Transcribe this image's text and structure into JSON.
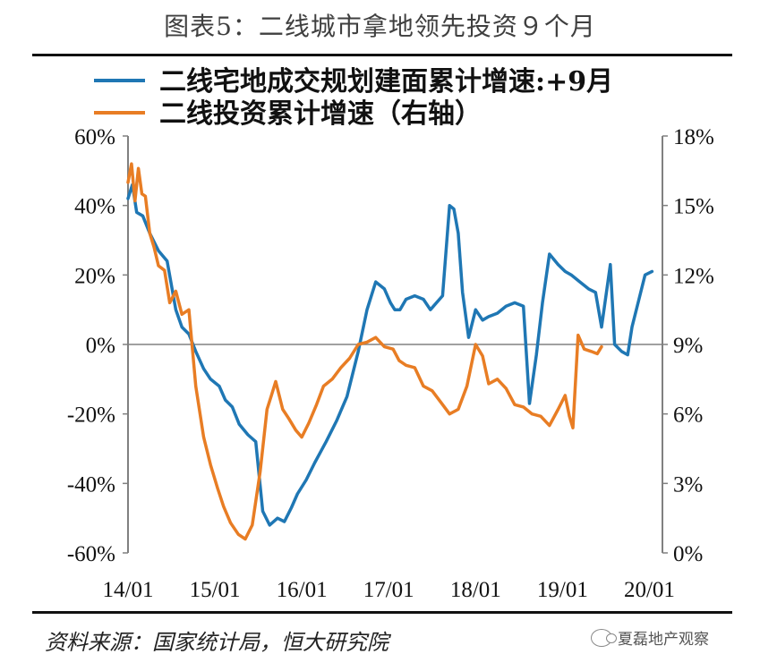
{
  "title": "图表5：二线城市拿地领先投资９个月",
  "source": "资料来源：国家统计局，恒大研究院",
  "watermark": "夏磊地产观察",
  "colors": {
    "blue": "#1f77b4",
    "orange": "#e87d24",
    "axis": "#808080",
    "zero_line": "#808080"
  },
  "chart_data": {
    "type": "line",
    "title": "图表5：二线城市拿地领先投资９个月",
    "x_tick_labels": [
      "14/01",
      "15/01",
      "16/01",
      "17/01",
      "18/01",
      "19/01",
      "20/01"
    ],
    "y_left": {
      "ylim": [
        -60,
        60
      ],
      "ticks": [
        "60%",
        "40%",
        "20%",
        "0%",
        "-20%",
        "-40%",
        "-60%"
      ]
    },
    "y_right": {
      "ylim": [
        0,
        18
      ],
      "ticks": [
        "18%",
        "15%",
        "12%",
        "9%",
        "6%",
        "3%",
        "0%"
      ]
    },
    "legend_position": "top",
    "series": [
      {
        "name": "二线宅地成交规划建面累计增速:+9月",
        "axis": "left",
        "color": "#1f77b4",
        "x": [
          2014.0,
          2014.05,
          2014.1,
          2014.17,
          2014.25,
          2014.35,
          2014.45,
          2014.55,
          2014.62,
          2014.7,
          2014.78,
          2014.87,
          2014.95,
          2015.05,
          2015.12,
          2015.2,
          2015.28,
          2015.38,
          2015.47,
          2015.55,
          2015.63,
          2015.72,
          2015.8,
          2015.88,
          2015.95,
          2016.05,
          2016.15,
          2016.28,
          2016.4,
          2016.52,
          2016.65,
          2016.75,
          2016.85,
          2016.95,
          2017.02,
          2017.07,
          2017.13,
          2017.2,
          2017.3,
          2017.4,
          2017.48,
          2017.55,
          2017.62,
          2017.7,
          2017.75,
          2017.8,
          2017.85,
          2017.92,
          2018.0,
          2018.08,
          2018.15,
          2018.25,
          2018.35,
          2018.45,
          2018.55,
          2018.62,
          2018.7,
          2018.77,
          2018.85,
          2018.95,
          2019.03,
          2019.1,
          2019.2,
          2019.3,
          2019.38,
          2019.45,
          2019.55,
          2019.6,
          2019.68,
          2019.75,
          2019.8,
          2019.88,
          2019.95,
          2020.03
        ],
        "values": [
          42,
          46,
          38,
          37,
          32,
          27,
          24,
          10,
          5,
          3,
          -2,
          -7,
          -10,
          -12,
          -16,
          -18,
          -23,
          -26,
          -28,
          -48,
          -52,
          -50,
          -51,
          -47,
          -43,
          -39,
          -34,
          -28,
          -22,
          -15,
          -2,
          10,
          18,
          16,
          12,
          10,
          10,
          13,
          14,
          13,
          10,
          12,
          14,
          40,
          39,
          32,
          15,
          2,
          10,
          7,
          8,
          9,
          11,
          12,
          11,
          -17,
          -3,
          12,
          26,
          23,
          21,
          20,
          18,
          16,
          15,
          5,
          23,
          0,
          -2,
          -3,
          5,
          13,
          20,
          21
        ]
      },
      {
        "name": "二线投资累计增速（右轴）",
        "axis": "right",
        "color": "#e87d24",
        "x": [
          2014.0,
          2014.04,
          2014.08,
          2014.12,
          2014.16,
          2014.2,
          2014.25,
          2014.3,
          2014.35,
          2014.42,
          2014.48,
          2014.55,
          2014.62,
          2014.7,
          2014.78,
          2014.87,
          2014.95,
          2015.03,
          2015.1,
          2015.18,
          2015.27,
          2015.35,
          2015.43,
          2015.52,
          2015.6,
          2015.65,
          2015.7,
          2015.78,
          2015.85,
          2015.93,
          2016.0,
          2016.08,
          2016.17,
          2016.25,
          2016.35,
          2016.45,
          2016.55,
          2016.65,
          2016.75,
          2016.85,
          2016.95,
          2017.05,
          2017.12,
          2017.2,
          2017.3,
          2017.4,
          2017.5,
          2017.6,
          2017.7,
          2017.8,
          2017.9,
          2018.0,
          2018.08,
          2018.15,
          2018.25,
          2018.35,
          2018.45,
          2018.55,
          2018.65,
          2018.75,
          2018.85,
          2018.95,
          2019.03,
          2019.08,
          2019.12,
          2019.18,
          2019.25,
          2019.33,
          2019.4,
          2019.45
        ],
        "values": [
          16,
          16.8,
          15.2,
          16.6,
          15.5,
          15.4,
          13.8,
          13.2,
          12.4,
          12.2,
          10.8,
          11.3,
          10.3,
          10.5,
          7.2,
          5.0,
          3.8,
          2.8,
          2.0,
          1.3,
          0.8,
          0.6,
          1.2,
          3.5,
          6.2,
          6.8,
          7.4,
          6.2,
          5.8,
          5.3,
          5.0,
          5.6,
          6.4,
          7.2,
          7.5,
          8.0,
          8.4,
          9.0,
          9.1,
          9.3,
          8.9,
          8.8,
          8.3,
          8.1,
          8.0,
          7.2,
          7.0,
          6.5,
          6.0,
          6.2,
          7.2,
          9.0,
          8.5,
          7.3,
          7.5,
          7.1,
          6.4,
          6.3,
          6.0,
          5.9,
          5.5,
          6.2,
          6.8,
          5.9,
          5.4,
          9.4,
          8.8,
          8.7,
          8.6,
          8.9
        ]
      }
    ]
  }
}
